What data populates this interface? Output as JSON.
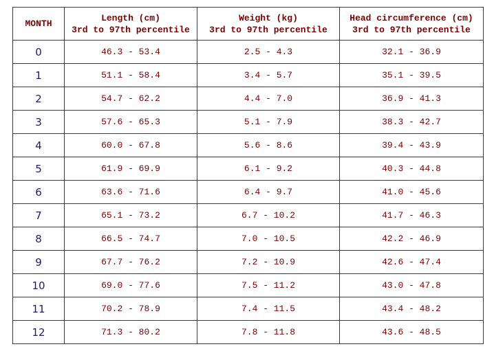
{
  "table": {
    "header": [
      [
        "MONTH"
      ],
      [
        "Length (cm)",
        "3rd to 97th percentile"
      ],
      [
        "Weight (kg)",
        "3rd to 97th percentile"
      ],
      [
        "Head circumference (cm)",
        "3rd to 97th percentile"
      ]
    ],
    "rows": [
      [
        "0",
        "46.3 - 53.4",
        "2.5 - 4.3",
        "32.1 - 36.9"
      ],
      [
        "1",
        "51.1 - 58.4",
        "3.4 - 5.7",
        "35.1 - 39.5"
      ],
      [
        "2",
        "54.7 - 62.2",
        "4.4 - 7.0",
        "36.9 - 41.3"
      ],
      [
        "3",
        "57.6 - 65.3",
        "5.1 - 7.9",
        "38.3 - 42.7"
      ],
      [
        "4",
        "60.0 - 67.8",
        "5.6 - 8.6",
        "39.4 - 43.9"
      ],
      [
        "5",
        "61.9 - 69.9",
        "6.1 - 9.2",
        "40.3 - 44.8"
      ],
      [
        "6",
        "63.6 - 71.6",
        "6.4 - 9.7",
        "41.0 - 45.6"
      ],
      [
        "7",
        "65.1 - 73.2",
        "6.7 - 10.2",
        "41.7 - 46.3"
      ],
      [
        "8",
        "66.5 - 74.7",
        "7.0 - 10.5",
        "42.2 - 46.9"
      ],
      [
        "9",
        "67.7 - 76.2",
        "7.2 - 10.9",
        "42.6 - 47.4"
      ],
      [
        "10",
        "69.0 - 77.6",
        "7.5 - 11.2",
        "43.0 - 47.8"
      ],
      [
        "11",
        "70.2 - 78.9",
        "7.4 - 11.5",
        "43.4 - 48.2"
      ],
      [
        "12",
        "71.3 - 80.2",
        "7.8 - 11.8",
        "43.6 - 48.5"
      ]
    ]
  }
}
